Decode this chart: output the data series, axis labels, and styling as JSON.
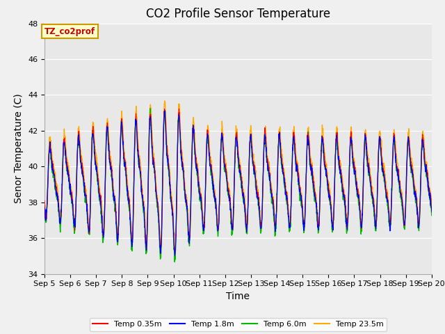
{
  "title": "CO2 Profile Sensor Temperature",
  "xlabel": "Time",
  "ylabel": "Senor Temperature (C)",
  "ylim": [
    34,
    48
  ],
  "yticks": [
    34,
    36,
    38,
    40,
    42,
    44,
    46,
    48
  ],
  "x_labels": [
    "Sep 5",
    "Sep 6",
    "Sep 7",
    "Sep 8",
    "Sep 9",
    "Sep 10",
    "Sep 11",
    "Sep 12",
    "Sep 13",
    "Sep 14",
    "Sep 15",
    "Sep 16",
    "Sep 17",
    "Sep 18",
    "Sep 19",
    "Sep 20"
  ],
  "legend_labels": [
    "Temp 0.35m",
    "Temp 1.8m",
    "Temp 6.0m",
    "Temp 23.5m"
  ],
  "legend_colors": [
    "#ff0000",
    "#0000ff",
    "#00bb00",
    "#ffaa00"
  ],
  "annotation_text": "TZ_co2prof",
  "annotation_bg": "#ffffcc",
  "annotation_border": "#cc9900",
  "annotation_text_color": "#cc0000",
  "background_color": "#e8e8e8",
  "grid_color": "#ffffff",
  "title_fontsize": 12,
  "axis_fontsize": 10,
  "tick_fontsize": 8,
  "n_days": 15,
  "pts_per_day": 144
}
